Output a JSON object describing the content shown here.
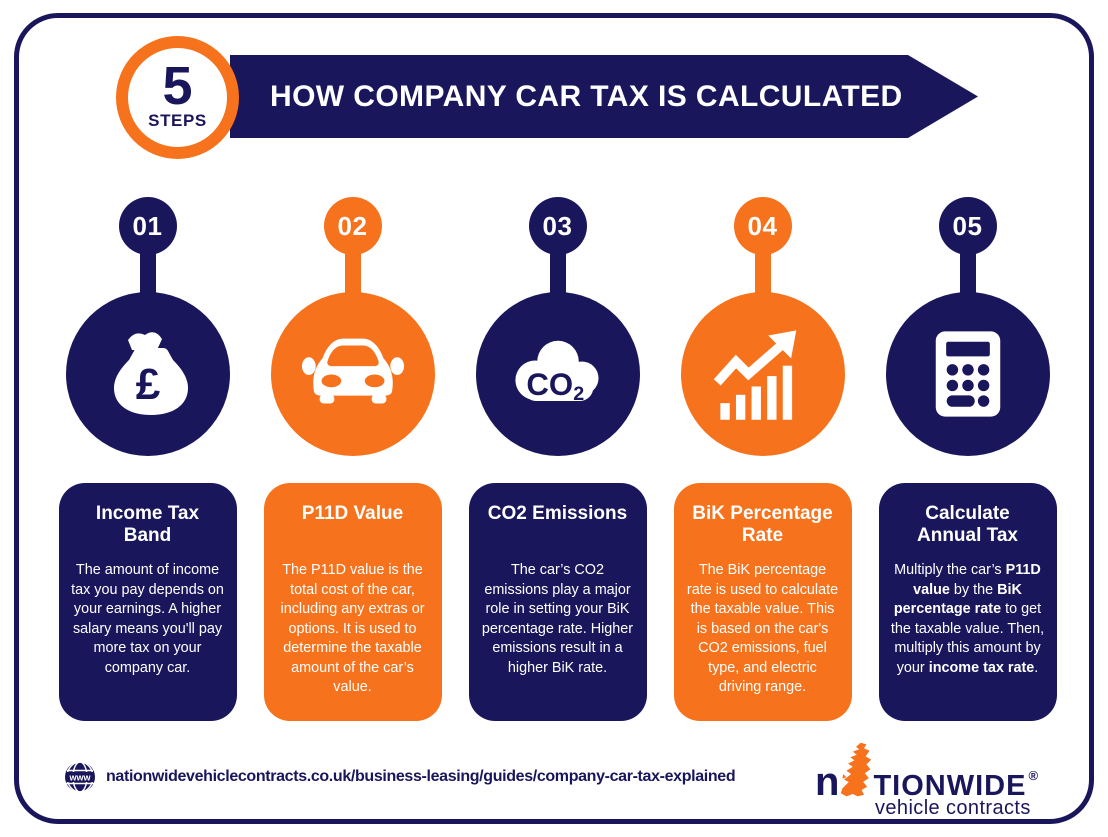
{
  "colors": {
    "navy": "#1a165c",
    "orange": "#f6721c",
    "white": "#ffffff"
  },
  "header": {
    "badge_number": "5",
    "badge_label": "STEPS",
    "title": "HOW COMPANY CAR TAX IS CALCULATED"
  },
  "steps": [
    {
      "number": "01",
      "color": "navy",
      "icon": "money-bag-icon",
      "title": "Income Tax\nBand",
      "body": [
        {
          "text": "The amount of income tax you pay depends on your earnings. A higher salary means you'll pay more tax on your company car.",
          "bold": false
        }
      ]
    },
    {
      "number": "02",
      "color": "orange",
      "icon": "car-icon",
      "title": "P11D Value",
      "body": [
        {
          "text": "The P11D value is the total cost of the car, including any extras or options. It is used to determine the taxable amount of the car’s value.",
          "bold": false
        }
      ]
    },
    {
      "number": "03",
      "color": "navy",
      "icon": "co2-cloud-icon",
      "title": "CO2 Emissions",
      "body": [
        {
          "text": "The car’s CO2 emissions play a major role in setting your BiK percentage rate. Higher emissions result in a higher BiK rate.",
          "bold": false
        }
      ]
    },
    {
      "number": "04",
      "color": "orange",
      "icon": "growth-chart-icon",
      "title": "BiK Percentage\nRate",
      "body": [
        {
          "text": "The BiK percentage rate is used to calculate the taxable value. This is based on the car's CO2 emissions, fuel type, and electric driving range.",
          "bold": false
        }
      ]
    },
    {
      "number": "05",
      "color": "navy",
      "icon": "calculator-icon",
      "title": "Calculate\nAnnual Tax",
      "body": [
        {
          "text": "Multiply the car’s ",
          "bold": false
        },
        {
          "text": "P11D value",
          "bold": true
        },
        {
          "text": " by the ",
          "bold": false
        },
        {
          "text": "BiK percentage rate",
          "bold": true
        },
        {
          "text": " to get the taxable value. Then, multiply this amount by your ",
          "bold": false
        },
        {
          "text": "income tax rate",
          "bold": true
        },
        {
          "text": ".",
          "bold": false
        }
      ]
    }
  ],
  "footer": {
    "url": "nationwidevehiclecontracts.co.uk/business-leasing/guides/company-car-tax-explained",
    "globe_icon": "globe-www-icon",
    "logo": {
      "part1": "n",
      "map_icon": "uk-map-icon",
      "part2": "TIONWIDE",
      "registered": "®",
      "subtitle": "vehicle contracts"
    }
  }
}
